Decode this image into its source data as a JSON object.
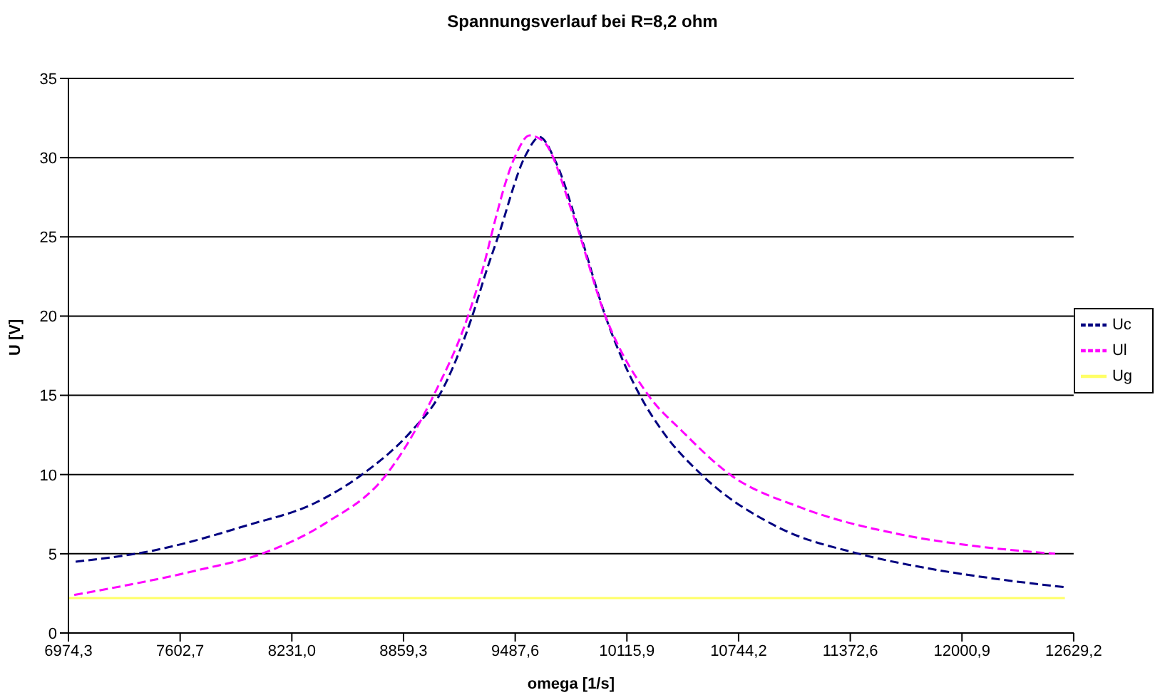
{
  "chart_data": {
    "type": "line",
    "title": "Spannungsverlauf bei R=8,2 ohm",
    "xlabel": "omega [1/s]",
    "ylabel": "U [V]",
    "xlim": [
      6974.3,
      12629.2
    ],
    "xticks": [
      {
        "value": 6974.3,
        "label": "6974,3"
      },
      {
        "value": 7602.7,
        "label": "7602,7"
      },
      {
        "value": 8231.0,
        "label": "8231,0"
      },
      {
        "value": 8859.3,
        "label": "8859,3"
      },
      {
        "value": 9487.6,
        "label": "9487,6"
      },
      {
        "value": 10115.9,
        "label": "10115,9"
      },
      {
        "value": 10744.2,
        "label": "10744,2"
      },
      {
        "value": 11372.6,
        "label": "11372,6"
      },
      {
        "value": 12000.9,
        "label": "12000,9"
      },
      {
        "value": 12629.2,
        "label": "12629,2"
      }
    ],
    "ylim": [
      0,
      35
    ],
    "yticks": [
      0,
      5,
      10,
      15,
      20,
      25,
      30,
      35
    ],
    "grid": "y",
    "legend": "right",
    "series": [
      {
        "name": "Uc",
        "color": "#000080",
        "line_style": "dashed",
        "x": [
          7015,
          7450,
          7981,
          8360,
          8626,
          8900,
          9061,
          9246,
          9327,
          9391,
          9544,
          9625,
          9713,
          9858,
          9995,
          10189,
          10318,
          10535,
          10962,
          11421,
          11800,
          12203,
          12573
        ],
        "values": [
          4.5,
          5.2,
          6.8,
          8.2,
          10.0,
          12.7,
          15.0,
          20.0,
          22.9,
          25.0,
          30.1,
          31.3,
          29.8,
          25.0,
          20.0,
          15.0,
          12.7,
          10.0,
          6.7,
          5.0,
          4.1,
          3.4,
          2.9
        ]
      },
      {
        "name": "Ul",
        "color": "#ff00ff",
        "line_style": "dashed",
        "x": [
          7007,
          7716,
          8062,
          8416,
          8763,
          9029,
          9222,
          9327,
          9351,
          9488,
          9568,
          9649,
          9810,
          9995,
          10237,
          10430,
          10696,
          11099,
          11663,
          12066,
          12525
        ],
        "values": [
          2.4,
          4.0,
          5.0,
          6.9,
          10.0,
          15.0,
          20.0,
          23.9,
          25.0,
          30.1,
          31.4,
          31.0,
          26.5,
          20.0,
          15.0,
          12.7,
          10.0,
          7.9,
          6.2,
          5.5,
          5.0
        ]
      },
      {
        "name": "Ug",
        "color": "#ffff66",
        "line_style": "solid",
        "x": [
          6974.3,
          12580
        ],
        "values": [
          2.2,
          2.2
        ]
      }
    ]
  }
}
